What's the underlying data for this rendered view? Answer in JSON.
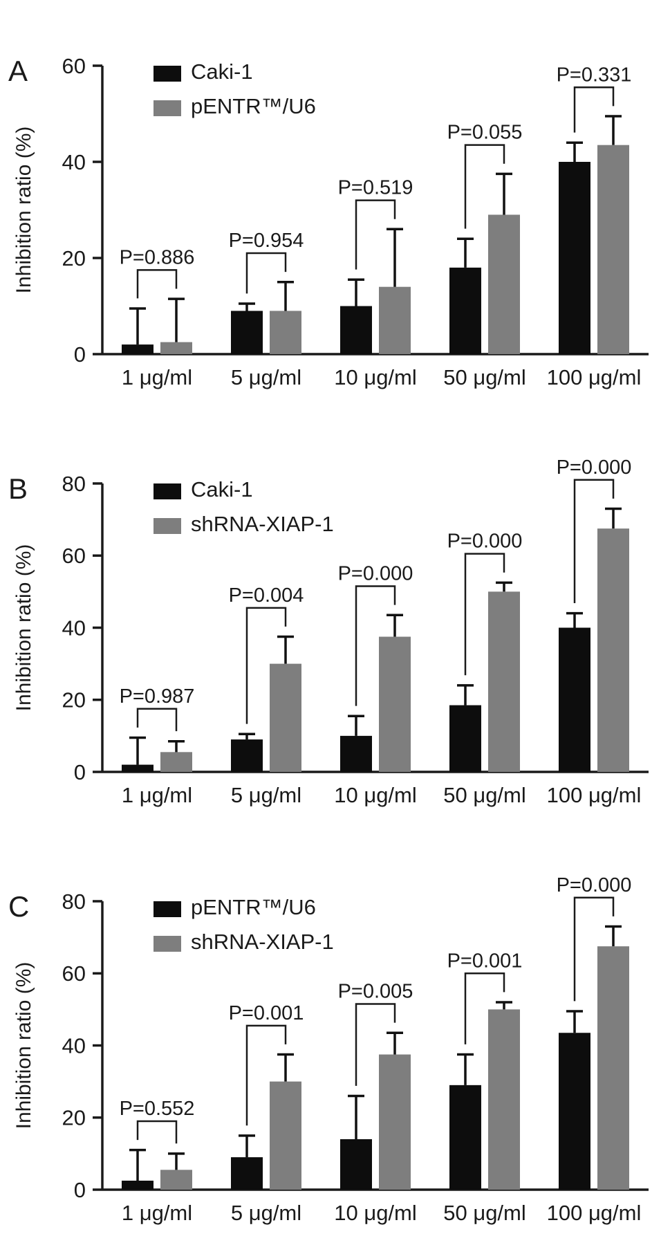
{
  "page": {
    "background": "#ffffff"
  },
  "colors": {
    "axis": "#1a1a1a",
    "error_bar": "#111111",
    "bracket": "#1a1a1a",
    "series_black": "#0d0d0d",
    "series_gray": "#7e7e7e"
  },
  "chart_data": [
    {
      "panel": "A",
      "type": "bar",
      "title": "",
      "ylabel": "Inhibition ratio (%)",
      "xlabel": "",
      "ylim": [
        0,
        60
      ],
      "yticks": [
        0,
        20,
        40,
        60
      ],
      "grid": false,
      "legend_position": "top-left",
      "categories": [
        "1 μg/ml",
        "5 μg/ml",
        "10 μg/ml",
        "50 μg/ml",
        "100 μg/ml"
      ],
      "series": [
        {
          "name": "Caki-1",
          "color": "#0d0d0d",
          "values": [
            2,
            9,
            10,
            18,
            40
          ],
          "errors": [
            7.5,
            1.5,
            5.5,
            6,
            4
          ]
        },
        {
          "name": "pENTR™/U6",
          "color": "#7e7e7e",
          "values": [
            2.5,
            9,
            14,
            29,
            43.5
          ],
          "errors": [
            9,
            6,
            12,
            8.5,
            6
          ]
        }
      ],
      "p_labels": [
        "P=0.886",
        "P=0.954",
        "P=0.519",
        "P=0.055",
        "P=0.331"
      ]
    },
    {
      "panel": "B",
      "type": "bar",
      "title": "",
      "ylabel": "Inhibition ratio (%)",
      "xlabel": "",
      "ylim": [
        0,
        80
      ],
      "yticks": [
        0,
        20,
        40,
        60,
        80
      ],
      "grid": false,
      "legend_position": "top-left",
      "categories": [
        "1 μg/ml",
        "5 μg/ml",
        "10 μg/ml",
        "50 μg/ml",
        "100 μg/ml"
      ],
      "series": [
        {
          "name": "Caki-1",
          "color": "#0d0d0d",
          "values": [
            2,
            9,
            10,
            18.5,
            40
          ],
          "errors": [
            7.5,
            1.5,
            5.5,
            5.5,
            4
          ]
        },
        {
          "name": "shRNA-XIAP-1",
          "color": "#7e7e7e",
          "values": [
            5.5,
            30,
            37.5,
            50,
            67.5
          ],
          "errors": [
            3,
            7.5,
            6,
            2.5,
            5.5
          ]
        }
      ],
      "p_labels": [
        "P=0.987",
        "P=0.004",
        "P=0.000",
        "P=0.000",
        "P=0.000"
      ]
    },
    {
      "panel": "C",
      "type": "bar",
      "title": "",
      "ylabel": "Inhibition ratio (%)",
      "xlabel": "",
      "ylim": [
        0,
        80
      ],
      "yticks": [
        0,
        20,
        40,
        60,
        80
      ],
      "grid": false,
      "legend_position": "top-left",
      "categories": [
        "1 μg/ml",
        "5 μg/ml",
        "10 μg/ml",
        "50 μg/ml",
        "100 μg/ml"
      ],
      "series": [
        {
          "name": "pENTR™/U6",
          "color": "#0d0d0d",
          "values": [
            2.5,
            9,
            14,
            29,
            43.5
          ],
          "errors": [
            8.5,
            6,
            12,
            8.5,
            6
          ]
        },
        {
          "name": "shRNA-XIAP-1",
          "color": "#7e7e7e",
          "values": [
            5.5,
            30,
            37.5,
            50,
            67.5
          ],
          "errors": [
            4.5,
            7.5,
            6,
            2,
            5.5
          ]
        }
      ],
      "p_labels": [
        "P=0.552",
        "P=0.001",
        "P=0.005",
        "P=0.001",
        "P=0.000"
      ]
    }
  ]
}
